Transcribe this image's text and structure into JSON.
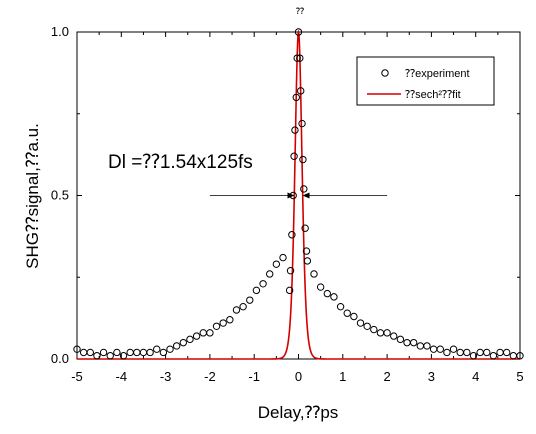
{
  "chart_data": {
    "type": "scatter",
    "title": "⁇",
    "xlabel": "Delay,⁇ps",
    "ylabel": "SHG⁇signal,⁇a.u.",
    "xlim": [
      -5,
      5
    ],
    "ylim": [
      0.0,
      1.0
    ],
    "x_ticks": [
      "-5",
      "-4",
      "-3",
      "-2",
      "-1",
      "0",
      "1",
      "2",
      "3",
      "4",
      "5"
    ],
    "y_ticks": [
      "0.0",
      "0.5",
      "1.0"
    ],
    "annotation": "Dl =⁇1.54x125fs",
    "fwhm_marker": {
      "y": 0.5,
      "x_left": -2,
      "x_right": 2
    },
    "legend": {
      "position": "top-right",
      "experiment_label": "⁇experiment",
      "fit_label": "⁇sech²⁇fit"
    },
    "colors": {
      "experiment": "#000000",
      "fit": "#d40000"
    },
    "series": [
      {
        "name": "⁇experiment",
        "style": "hollow-circle",
        "x": [
          -5.0,
          -4.85,
          -4.7,
          -4.55,
          -4.4,
          -4.25,
          -4.1,
          -3.95,
          -3.8,
          -3.65,
          -3.5,
          -3.35,
          -3.2,
          -3.05,
          -2.9,
          -2.75,
          -2.6,
          -2.45,
          -2.3,
          -2.15,
          -2.0,
          -1.85,
          -1.7,
          -1.55,
          -1.4,
          -1.25,
          -1.1,
          -0.95,
          -0.8,
          -0.65,
          -0.5,
          -0.35,
          -0.2,
          -0.18,
          -0.15,
          -0.12,
          -0.1,
          -0.08,
          -0.05,
          -0.03,
          0.0,
          0.03,
          0.05,
          0.08,
          0.1,
          0.12,
          0.15,
          0.18,
          0.2,
          0.35,
          0.5,
          0.65,
          0.8,
          0.95,
          1.1,
          1.25,
          1.4,
          1.55,
          1.7,
          1.85,
          2.0,
          2.15,
          2.3,
          2.45,
          2.6,
          2.75,
          2.9,
          3.05,
          3.2,
          3.35,
          3.5,
          3.65,
          3.8,
          3.95,
          4.1,
          4.25,
          4.4,
          4.55,
          4.7,
          4.85,
          5.0
        ],
        "y": [
          0.03,
          0.02,
          0.02,
          0.01,
          0.02,
          0.01,
          0.02,
          0.01,
          0.02,
          0.02,
          0.02,
          0.02,
          0.03,
          0.02,
          0.03,
          0.04,
          0.05,
          0.06,
          0.07,
          0.08,
          0.08,
          0.1,
          0.11,
          0.12,
          0.15,
          0.16,
          0.18,
          0.21,
          0.23,
          0.26,
          0.29,
          0.31,
          0.21,
          0.27,
          0.38,
          0.5,
          0.62,
          0.7,
          0.8,
          0.92,
          1.0,
          0.92,
          0.82,
          0.72,
          0.61,
          0.52,
          0.4,
          0.33,
          0.3,
          0.26,
          0.22,
          0.2,
          0.19,
          0.16,
          0.14,
          0.13,
          0.11,
          0.1,
          0.09,
          0.08,
          0.08,
          0.07,
          0.06,
          0.05,
          0.05,
          0.04,
          0.04,
          0.03,
          0.03,
          0.02,
          0.03,
          0.02,
          0.02,
          0.01,
          0.02,
          0.02,
          0.01,
          0.02,
          0.02,
          0.01,
          0.01
        ]
      },
      {
        "name": "⁇sech²⁇fit",
        "style": "line",
        "fwhm": 0.19
      }
    ]
  }
}
